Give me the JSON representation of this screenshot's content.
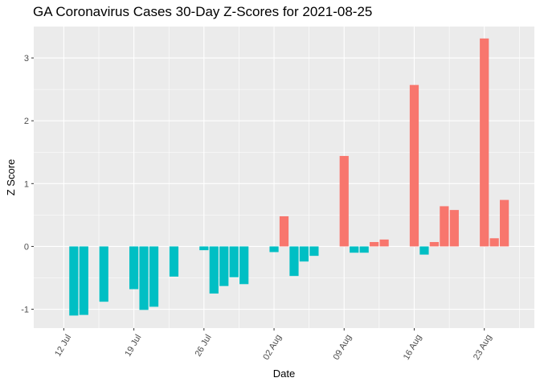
{
  "chart_data": {
    "type": "bar",
    "title": "GA Coronavirus Cases 30-Day Z-Scores for 2021-08-25",
    "xlabel": "Date",
    "ylabel": "Z Score",
    "ylim": [
      -1.3,
      3.5
    ],
    "yticks": [
      -1,
      0,
      1,
      2,
      3
    ],
    "x_range": [
      "2021-07-09",
      "2021-08-28"
    ],
    "xticks": [
      {
        "date": "2021-07-12",
        "label": "12 Jul"
      },
      {
        "date": "2021-07-19",
        "label": "19 Jul"
      },
      {
        "date": "2021-07-26",
        "label": "26 Jul"
      },
      {
        "date": "2021-08-02",
        "label": "02 Aug"
      },
      {
        "date": "2021-08-09",
        "label": "09 Aug"
      },
      {
        "date": "2021-08-16",
        "label": "16 Aug"
      },
      {
        "date": "2021-08-23",
        "label": "23 Aug"
      }
    ],
    "colors": {
      "positive": "#F8766D",
      "negative": "#00BFC4"
    },
    "grid": true,
    "legend": "none",
    "x": [
      "2021-07-13",
      "2021-07-14",
      "2021-07-16",
      "2021-07-19",
      "2021-07-20",
      "2021-07-21",
      "2021-07-23",
      "2021-07-26",
      "2021-07-27",
      "2021-07-28",
      "2021-07-29",
      "2021-07-30",
      "2021-08-02",
      "2021-08-03",
      "2021-08-04",
      "2021-08-05",
      "2021-08-06",
      "2021-08-09",
      "2021-08-10",
      "2021-08-11",
      "2021-08-12",
      "2021-08-13",
      "2021-08-16",
      "2021-08-17",
      "2021-08-18",
      "2021-08-19",
      "2021-08-20",
      "2021-08-23",
      "2021-08-24",
      "2021-08-25"
    ],
    "values": [
      -1.1,
      -1.09,
      -0.88,
      -0.68,
      -1.01,
      -0.96,
      -0.48,
      -0.06,
      -0.75,
      -0.63,
      -0.49,
      -0.6,
      -0.09,
      0.48,
      -0.47,
      -0.24,
      -0.15,
      1.44,
      -0.1,
      -0.1,
      0.07,
      0.11,
      2.57,
      -0.13,
      0.07,
      0.64,
      0.58,
      3.31,
      0.13,
      0.74
    ]
  }
}
